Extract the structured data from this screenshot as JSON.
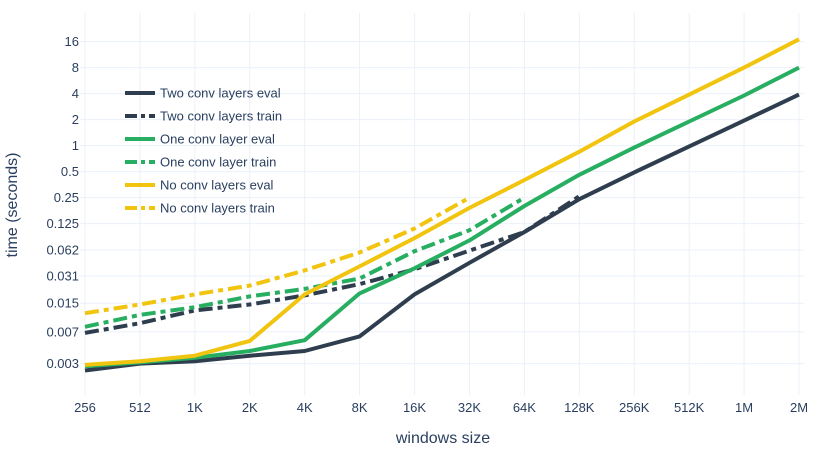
{
  "chart_data": {
    "type": "line",
    "title": "",
    "xlabel": "windows size",
    "ylabel": "time (seconds)",
    "x_scale": "log2",
    "y_scale": "log",
    "grid": true,
    "legend_position": "top-left",
    "x": [
      256,
      512,
      1024,
      2048,
      4096,
      8192,
      16384,
      32768,
      65536,
      131072,
      262144,
      524288,
      1048576,
      2097152
    ],
    "x_tick_labels": [
      "256",
      "512",
      "1K",
      "2K",
      "4K",
      "8K",
      "16K",
      "32K",
      "64K",
      "128K",
      "256K",
      "512K",
      "1M",
      "2M"
    ],
    "y_ticks": [
      0.003,
      0.007,
      0.015,
      0.031,
      0.062,
      0.125,
      0.25,
      0.5,
      1,
      2,
      4,
      8,
      16
    ],
    "y_tick_labels": [
      "0.003",
      "0.007",
      "0.015",
      "0.031",
      "0.062",
      "0.125",
      "0.25",
      "0.5",
      "1",
      "2",
      "4",
      "8",
      "16"
    ],
    "ylim": [
      0.0013,
      30
    ],
    "series": [
      {
        "name": "Two conv layers eval",
        "color": "#2f3e4e",
        "dash": "solid",
        "values": [
          0.0025,
          0.003,
          0.0032,
          0.0037,
          0.0042,
          0.0062,
          0.019,
          0.044,
          0.1,
          0.24,
          0.49,
          0.98,
          1.95,
          3.9
        ]
      },
      {
        "name": "Two conv layers train",
        "color": "#2f3e4e",
        "dash": "dashdot",
        "values": [
          0.0068,
          0.0088,
          0.0124,
          0.0145,
          0.0185,
          0.025,
          0.037,
          0.061,
          0.1,
          0.26,
          null,
          null,
          null,
          null
        ]
      },
      {
        "name": "One conv layer eval",
        "color": "#27ae60",
        "dash": "solid",
        "values": [
          0.0028,
          0.0031,
          0.0035,
          0.0042,
          0.0056,
          0.0195,
          0.038,
          0.08,
          0.2,
          0.46,
          0.95,
          1.9,
          3.8,
          8.0
        ]
      },
      {
        "name": "One conv layer train",
        "color": "#27ae60",
        "dash": "dashdot",
        "values": [
          0.008,
          0.011,
          0.0135,
          0.018,
          0.022,
          0.029,
          0.06,
          0.105,
          0.25,
          null,
          null,
          null,
          null,
          null
        ]
      },
      {
        "name": "No conv layers eval",
        "color": "#f1c40f",
        "dash": "solid",
        "values": [
          0.0029,
          0.0032,
          0.0037,
          0.0055,
          0.019,
          0.04,
          0.085,
          0.19,
          0.4,
          0.85,
          1.9,
          3.9,
          8.0,
          17.0
        ]
      },
      {
        "name": "No conv layers train",
        "color": "#f1c40f",
        "dash": "dashdot",
        "values": [
          0.0115,
          0.0145,
          0.019,
          0.024,
          0.036,
          0.058,
          0.11,
          0.25,
          null,
          null,
          null,
          null,
          null,
          null
        ]
      }
    ]
  }
}
